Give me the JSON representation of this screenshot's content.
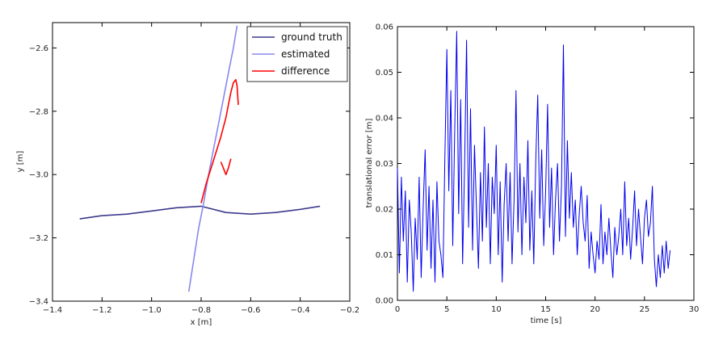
{
  "chart_data": [
    {
      "type": "line",
      "xlabel": "x [m]",
      "ylabel": "y [m]",
      "xlim": [
        -1.4,
        -0.2
      ],
      "ylim": [
        -3.4,
        -2.52
      ],
      "xticks": [
        -1.4,
        -1.2,
        -1.0,
        -0.8,
        -0.6,
        -0.4,
        -0.2
      ],
      "xtick_labels": [
        "−1.4",
        "−1.2",
        "−1.0",
        "−0.8",
        "−0.6",
        "−0.4",
        "−0.2"
      ],
      "yticks": [
        -3.4,
        -3.2,
        -3.0,
        -2.8,
        -2.6
      ],
      "ytick_labels": [
        "−3.4",
        "−3.2",
        "−3.0",
        "−2.8",
        "−2.6"
      ],
      "grid": false,
      "legend_position": "top-right",
      "series": [
        {
          "name": "ground truth",
          "color": "#3b3b8c",
          "x": [
            -1.29,
            -1.2,
            -1.1,
            -1.0,
            -0.9,
            -0.8,
            -0.7,
            -0.6,
            -0.5,
            -0.4,
            -0.32
          ],
          "y": [
            -3.14,
            -3.13,
            -3.125,
            -3.115,
            -3.105,
            -3.1,
            -3.12,
            -3.125,
            -3.12,
            -3.11,
            -3.1
          ]
        },
        {
          "name": "estimated",
          "color": "#8888ee",
          "x": [
            -0.85,
            -0.83,
            -0.81,
            -0.79,
            -0.77,
            -0.75,
            -0.73,
            -0.71,
            -0.69,
            -0.67,
            -0.655
          ],
          "y": [
            -3.37,
            -3.27,
            -3.17,
            -3.09,
            -3.0,
            -2.92,
            -2.84,
            -2.76,
            -2.68,
            -2.6,
            -2.53
          ]
        },
        {
          "name": "difference",
          "color": "#ff0000",
          "x": [
            -0.8,
            -0.78,
            -0.76,
            -0.74,
            -0.72,
            -0.7,
            -0.69,
            -0.68,
            -0.67,
            -0.66,
            -0.655,
            -0.65
          ],
          "y": [
            -3.09,
            -3.03,
            -2.98,
            -2.93,
            -2.88,
            -2.82,
            -2.78,
            -2.74,
            -2.71,
            -2.7,
            -2.72,
            -2.78
          ]
        },
        {
          "name": "",
          "color": "#ff0000",
          "x": [
            -0.68,
            -0.69,
            -0.7,
            -0.71,
            -0.72
          ],
          "y": [
            -2.95,
            -2.98,
            -3.0,
            -2.98,
            -2.96
          ]
        }
      ]
    },
    {
      "type": "line",
      "xlabel": "time [s]",
      "ylabel": "translational error [m]",
      "xlim": [
        0,
        30
      ],
      "ylim": [
        0,
        0.06
      ],
      "xticks": [
        0,
        5,
        10,
        15,
        20,
        25,
        30
      ],
      "xtick_labels": [
        "0",
        "5",
        "10",
        "15",
        "20",
        "25",
        "30"
      ],
      "yticks": [
        0.0,
        0.01,
        0.02,
        0.03,
        0.04,
        0.05,
        0.06
      ],
      "ytick_labels": [
        "0.00",
        "0.01",
        "0.02",
        "0.03",
        "0.04",
        "0.05",
        "0.06"
      ],
      "grid": false,
      "series": [
        {
          "color": "#0000ee",
          "x": [
            0,
            0.2,
            0.4,
            0.6,
            0.8,
            1.0,
            1.2,
            1.4,
            1.6,
            1.8,
            2.0,
            2.2,
            2.4,
            2.6,
            2.8,
            3.0,
            3.2,
            3.4,
            3.6,
            3.8,
            4.0,
            4.2,
            4.4,
            4.6,
            4.8,
            5.0,
            5.2,
            5.4,
            5.6,
            5.8,
            6.0,
            6.2,
            6.4,
            6.6,
            6.8,
            7.0,
            7.2,
            7.4,
            7.6,
            7.8,
            8.0,
            8.2,
            8.4,
            8.6,
            8.8,
            9.0,
            9.2,
            9.4,
            9.6,
            9.8,
            10.0,
            10.2,
            10.4,
            10.6,
            10.8,
            11.0,
            11.2,
            11.4,
            11.6,
            11.8,
            12.0,
            12.2,
            12.4,
            12.6,
            12.8,
            13.0,
            13.2,
            13.4,
            13.6,
            13.8,
            14.0,
            14.2,
            14.4,
            14.6,
            14.8,
            15.0,
            15.2,
            15.4,
            15.6,
            15.8,
            16.0,
            16.2,
            16.4,
            16.6,
            16.8,
            17.0,
            17.2,
            17.4,
            17.6,
            17.8,
            18.0,
            18.2,
            18.4,
            18.6,
            18.8,
            19.0,
            19.2,
            19.4,
            19.6,
            19.8,
            20.0,
            20.2,
            20.4,
            20.6,
            20.8,
            21.0,
            21.2,
            21.4,
            21.6,
            21.8,
            22.0,
            22.2,
            22.4,
            22.6,
            22.8,
            23.0,
            23.2,
            23.4,
            23.6,
            23.8,
            24.0,
            24.2,
            24.4,
            24.6,
            24.8,
            25.0,
            25.2,
            25.4,
            25.6,
            25.8,
            26.0,
            26.2,
            26.4,
            26.6,
            26.8,
            27.0,
            27.2,
            27.4,
            27.6
          ],
          "y": [
            0.029,
            0.006,
            0.027,
            0.013,
            0.024,
            0.004,
            0.022,
            0.015,
            0.002,
            0.018,
            0.009,
            0.027,
            0.005,
            0.02,
            0.033,
            0.011,
            0.025,
            0.007,
            0.022,
            0.004,
            0.026,
            0.013,
            0.01,
            0.005,
            0.031,
            0.055,
            0.024,
            0.046,
            0.012,
            0.038,
            0.059,
            0.019,
            0.044,
            0.008,
            0.03,
            0.057,
            0.016,
            0.042,
            0.011,
            0.034,
            0.02,
            0.007,
            0.028,
            0.013,
            0.038,
            0.016,
            0.03,
            0.008,
            0.027,
            0.019,
            0.034,
            0.01,
            0.026,
            0.004,
            0.021,
            0.03,
            0.013,
            0.028,
            0.008,
            0.022,
            0.046,
            0.015,
            0.03,
            0.01,
            0.027,
            0.017,
            0.035,
            0.011,
            0.024,
            0.008,
            0.031,
            0.045,
            0.018,
            0.033,
            0.012,
            0.024,
            0.043,
            0.016,
            0.029,
            0.01,
            0.022,
            0.03,
            0.013,
            0.025,
            0.056,
            0.014,
            0.035,
            0.018,
            0.028,
            0.016,
            0.022,
            0.01,
            0.019,
            0.025,
            0.017,
            0.013,
            0.023,
            0.007,
            0.015,
            0.01,
            0.006,
            0.013,
            0.009,
            0.021,
            0.008,
            0.015,
            0.01,
            0.018,
            0.011,
            0.005,
            0.016,
            0.01,
            0.014,
            0.02,
            0.01,
            0.026,
            0.012,
            0.018,
            0.009,
            0.016,
            0.024,
            0.012,
            0.02,
            0.014,
            0.008,
            0.018,
            0.022,
            0.014,
            0.017,
            0.025,
            0.009,
            0.003,
            0.01,
            0.005,
            0.012,
            0.006,
            0.013,
            0.007,
            0.011
          ]
        }
      ]
    }
  ],
  "legend": {
    "items": [
      {
        "label": "ground truth",
        "color": "#3b3b8c"
      },
      {
        "label": "estimated",
        "color": "#8888ee"
      },
      {
        "label": "difference",
        "color": "#ff0000"
      }
    ]
  }
}
